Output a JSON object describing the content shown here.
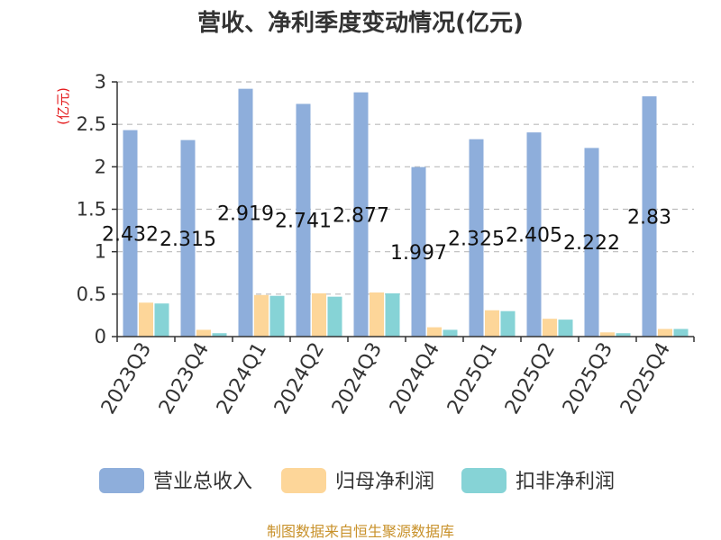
{
  "colors": {
    "revenue": "#8eaedb",
    "net_profit": "#fdd699",
    "deducted_profit": "#86d3d6",
    "axis": "#333333",
    "grid": "#bbbbbb",
    "unit": "#e41a1c",
    "source": "#c8912a"
  },
  "chart_data": {
    "type": "bar",
    "title": "营收、净利季度变动情况(亿元)",
    "ylabel": "(亿元)",
    "xlabel": "",
    "ylim": [
      0,
      3
    ],
    "yticks": [
      "0",
      "0.5",
      "1",
      "1.5",
      "2",
      "2.5",
      "3"
    ],
    "grid": true,
    "legend_position": "bottom",
    "categories": [
      "2023Q3",
      "2023Q4",
      "2024Q1",
      "2024Q2",
      "2024Q3",
      "2024Q4",
      "2025Q1",
      "2025Q2",
      "2025Q3",
      "2025Q4"
    ],
    "series": [
      {
        "name": "营业总收入",
        "values": [
          2.432,
          2.315,
          2.919,
          2.741,
          2.877,
          1.997,
          2.325,
          2.405,
          2.222,
          2.83
        ],
        "labels": [
          "2.432",
          "2.315",
          "2.919",
          "2.741",
          "2.877",
          "1.997",
          "2.325",
          "2.405",
          "2.222",
          "2.83"
        ]
      },
      {
        "name": "归母净利润",
        "values": [
          0.4,
          0.08,
          0.49,
          0.51,
          0.52,
          0.11,
          0.31,
          0.21,
          0.05,
          0.09
        ]
      },
      {
        "name": "扣非净利润",
        "values": [
          0.39,
          0.04,
          0.48,
          0.47,
          0.51,
          0.08,
          0.3,
          0.2,
          0.04,
          0.09
        ]
      }
    ]
  },
  "source": "制图数据来自恒生聚源数据库"
}
